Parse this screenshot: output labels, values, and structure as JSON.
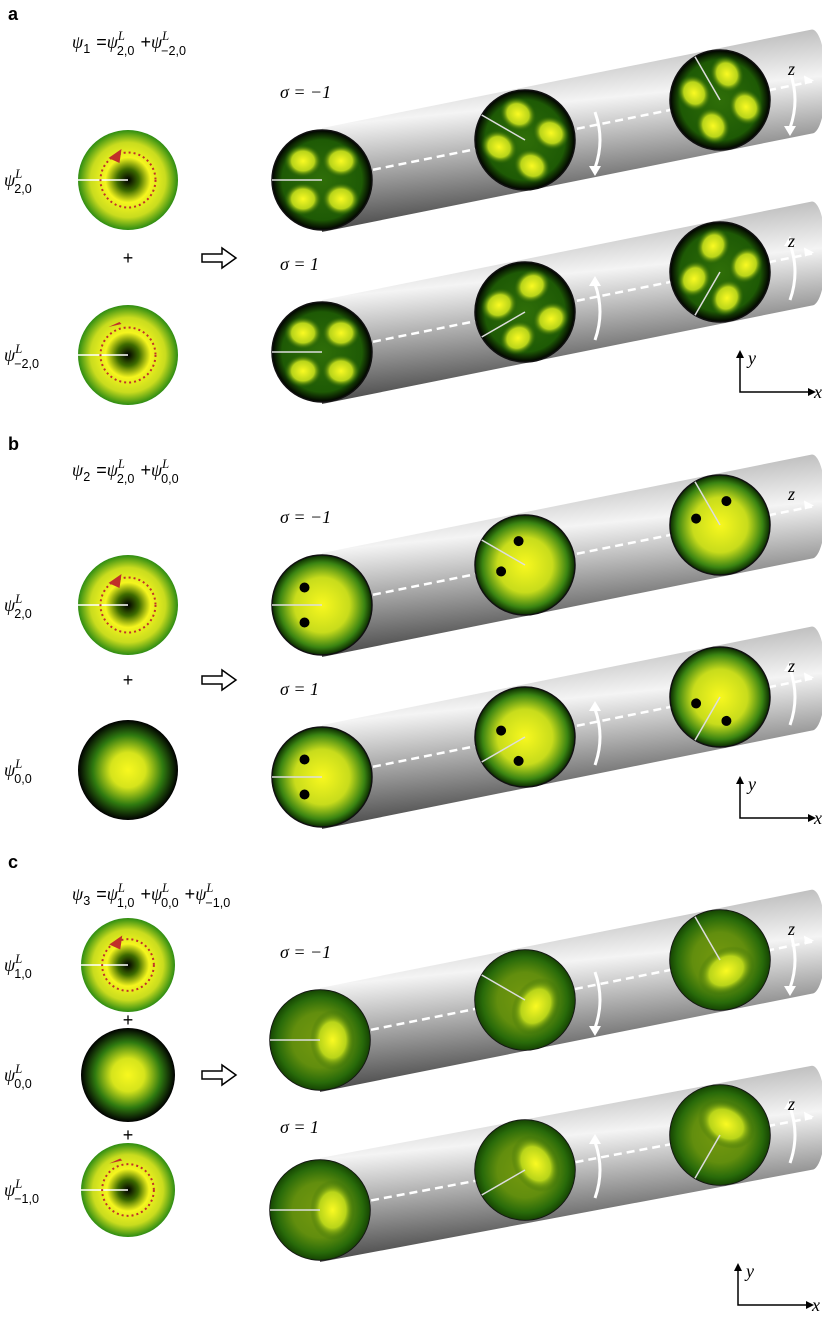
{
  "panels": [
    {
      "label": "a",
      "equation": [
        {
          "symbol": "ψ",
          "sub": "1"
        },
        "=",
        {
          "symbol": "ψ",
          "sup": "L",
          "sub": "2,0"
        },
        "+",
        {
          "symbol": "ψ",
          "sup": "L",
          "sub": "−2,0"
        }
      ],
      "modes": [
        {
          "symbol": "ψ",
          "sup": "L",
          "sub": "2,0"
        },
        {
          "symbol": "ψ",
          "sup": "L",
          "sub": "−2,0"
        }
      ],
      "plus": [
        "+"
      ],
      "beams": [
        {
          "sigma": "σ = −1"
        },
        {
          "sigma": "σ =  1"
        }
      ],
      "axes": {
        "x": "x",
        "y": "y",
        "z": [
          "z",
          "z"
        ]
      }
    },
    {
      "label": "b",
      "equation": [
        {
          "symbol": "ψ",
          "sub": "2"
        },
        "=",
        {
          "symbol": "ψ",
          "sup": "L",
          "sub": "2,0"
        },
        "+",
        {
          "symbol": "ψ",
          "sup": "L",
          "sub": "0,0"
        }
      ],
      "modes": [
        {
          "symbol": "ψ",
          "sup": "L",
          "sub": "2,0"
        },
        {
          "symbol": "ψ",
          "sup": "L",
          "sub": "0,0"
        }
      ],
      "plus": [
        "+"
      ],
      "beams": [
        {
          "sigma": "σ = −1"
        },
        {
          "sigma": "σ =  1"
        }
      ],
      "axes": {
        "x": "x",
        "y": "y",
        "z": [
          "z",
          "z"
        ]
      }
    },
    {
      "label": "c",
      "equation": [
        {
          "symbol": "ψ",
          "sub": "3"
        },
        "=",
        {
          "symbol": "ψ",
          "sup": "L",
          "sub": "1,0"
        },
        "+",
        {
          "symbol": "ψ",
          "sup": "L",
          "sub": "0,0"
        },
        "+",
        {
          "symbol": "ψ",
          "sup": "L",
          "sub": "−1,0"
        }
      ],
      "modes": [
        {
          "symbol": "ψ",
          "sup": "L",
          "sub": "1,0"
        },
        {
          "symbol": "ψ",
          "sup": "L",
          "sub": "0,0"
        },
        {
          "symbol": "ψ",
          "sup": "L",
          "sub": "−1,0"
        }
      ],
      "plus": [
        "+",
        "+"
      ],
      "beams": [
        {
          "sigma": "σ = −1"
        },
        {
          "sigma": "σ =  1"
        }
      ],
      "axes": {
        "x": "x",
        "y": "y",
        "z": [
          "z",
          "z"
        ]
      }
    }
  ]
}
